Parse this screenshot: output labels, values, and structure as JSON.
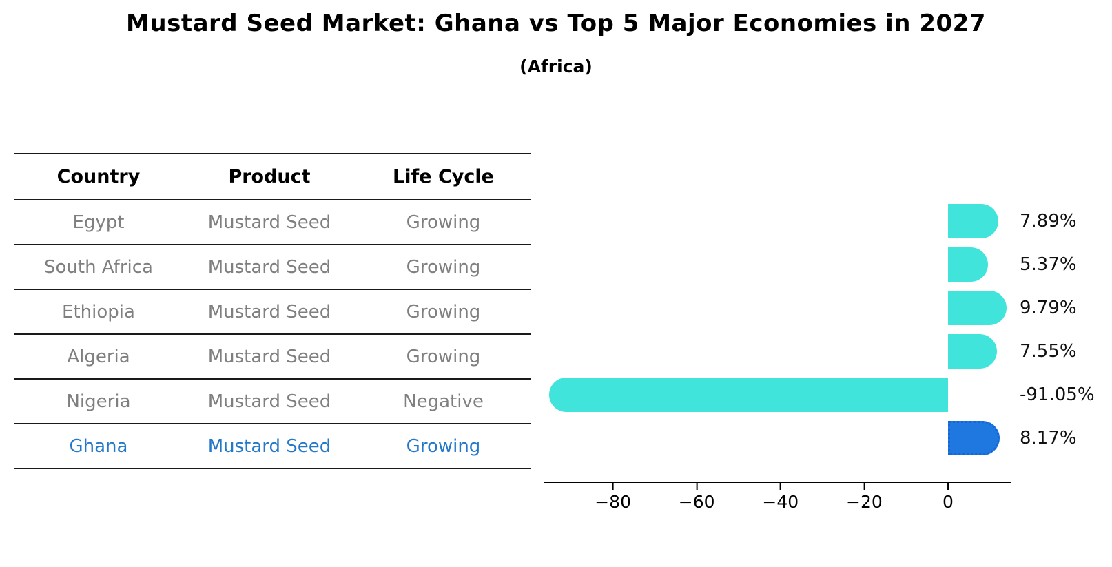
{
  "header": {
    "title": "Mustard Seed Market: Ghana vs Top 5 Major Economies in 2027",
    "subtitle": "(Africa)"
  },
  "table": {
    "columns": [
      "Country",
      "Product",
      "Life Cycle"
    ],
    "rows": [
      {
        "country": "Egypt",
        "product": "Mustard Seed",
        "life_cycle": "Growing"
      },
      {
        "country": "South Africa",
        "product": "Mustard Seed",
        "life_cycle": "Growing"
      },
      {
        "country": "Ethiopia",
        "product": "Mustard Seed",
        "life_cycle": "Growing"
      },
      {
        "country": "Algeria",
        "product": "Mustard Seed",
        "life_cycle": "Growing"
      },
      {
        "country": "Nigeria",
        "product": "Mustard Seed",
        "life_cycle": "Negative"
      },
      {
        "country": "Ghana",
        "product": "Mustard Seed",
        "life_cycle": "Growing"
      }
    ],
    "highlight_row": "Ghana",
    "highlight_text_color": "#2478c8"
  },
  "chart_data": {
    "type": "bar",
    "orientation": "horizontal",
    "title": "Mustard Seed Market: Ghana vs Top 5 Major Economies in 2027",
    "subtitle": "(Africa)",
    "categories": [
      "Egypt",
      "South Africa",
      "Ethiopia",
      "Algeria",
      "Nigeria",
      "Ghana"
    ],
    "values": [
      7.89,
      5.37,
      9.79,
      7.55,
      -91.05,
      8.17
    ],
    "value_labels": [
      "7.89%",
      "5.37%",
      "9.79%",
      "7.55%",
      "-91.05%",
      "8.17%"
    ],
    "xticks": [
      -80,
      -60,
      -40,
      -20,
      0
    ],
    "xtick_labels": [
      "−80",
      "−60",
      "−40",
      "−20",
      "0"
    ],
    "xlim": [
      -96,
      15
    ],
    "grid": false,
    "legend": false,
    "bar_color": "#40e4db",
    "highlight_color": "#1e78e0",
    "highlight_border_color": "#1565d8",
    "highlight_index": 5
  }
}
